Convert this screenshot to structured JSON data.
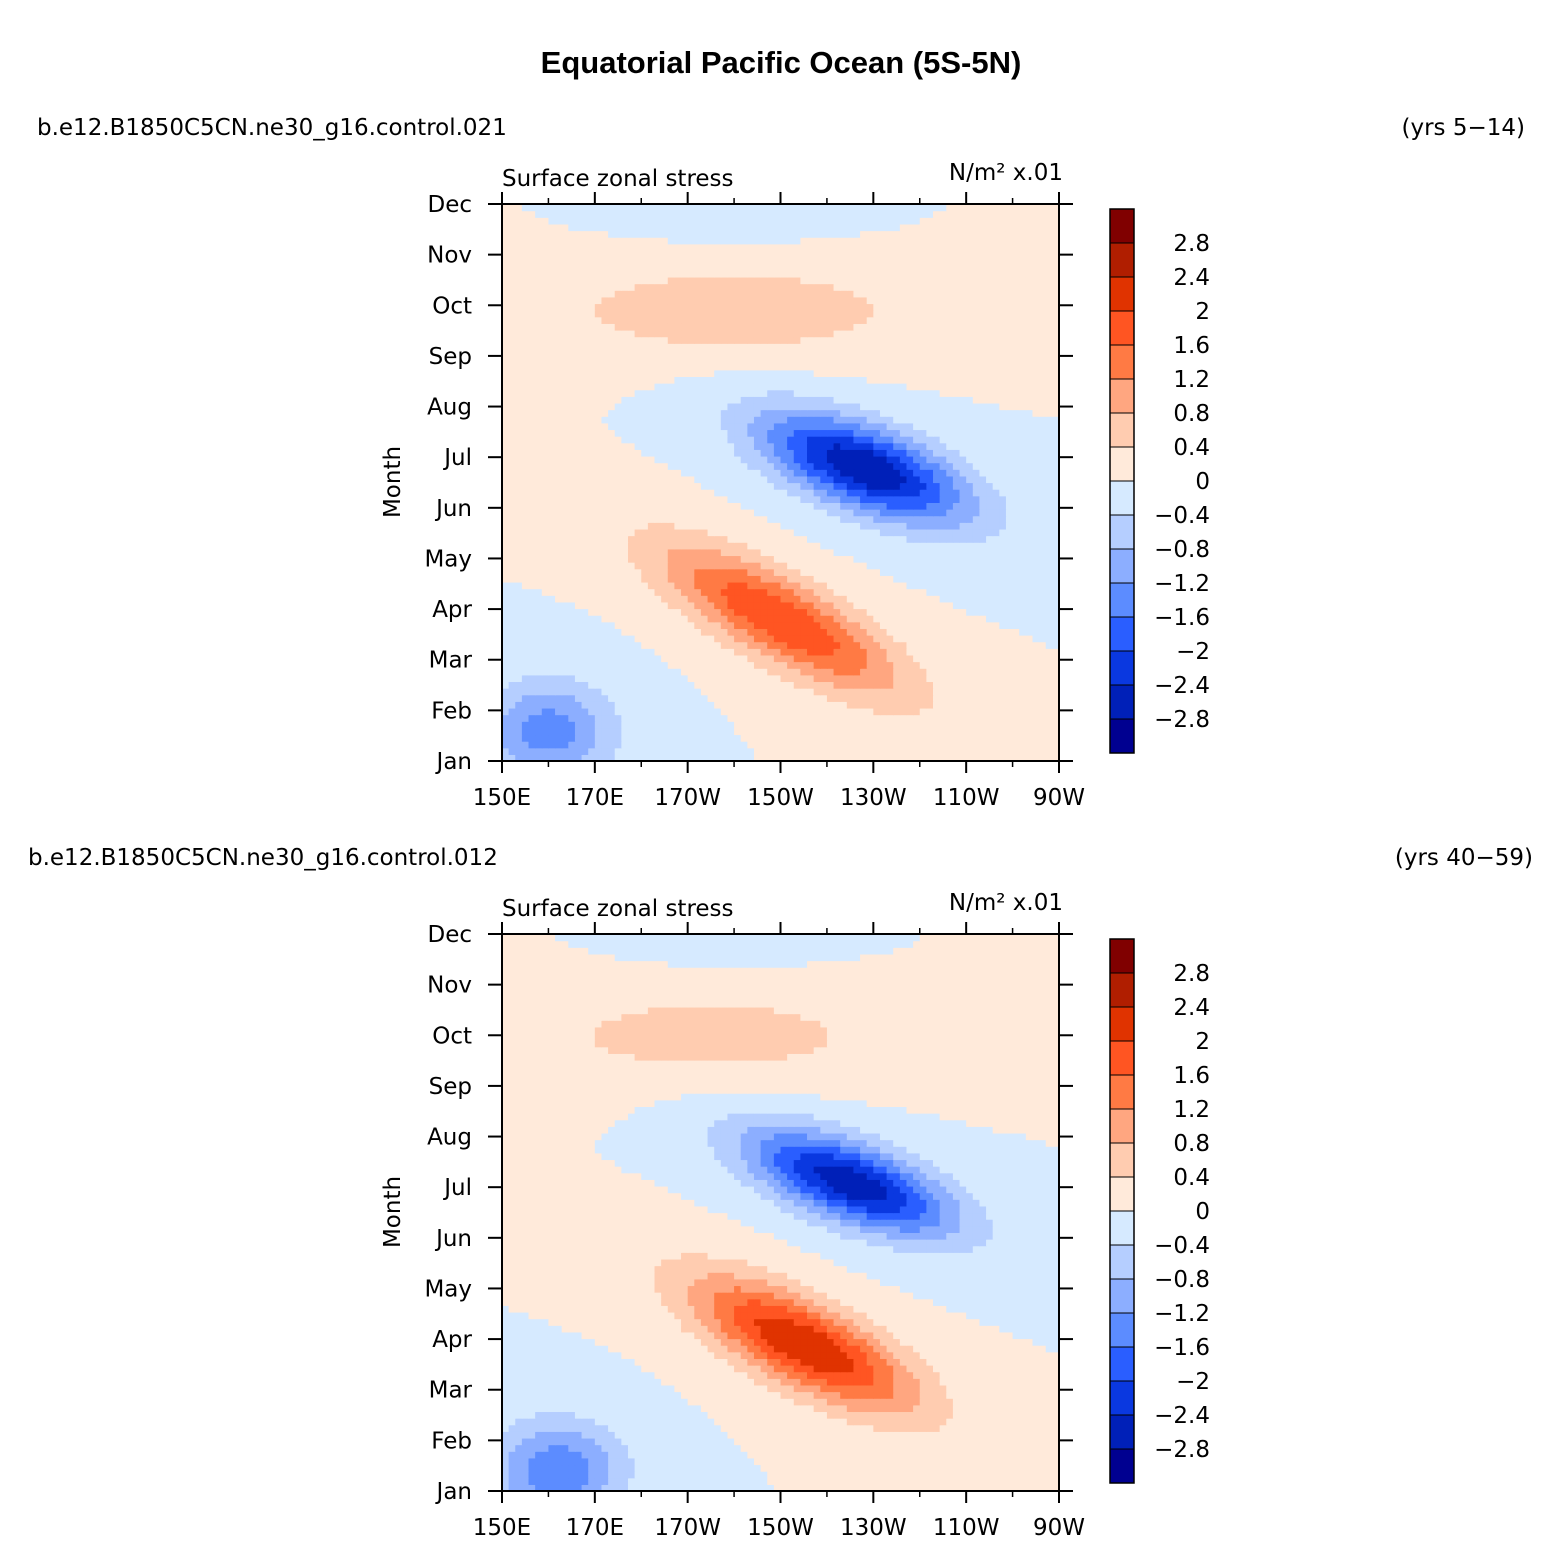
{
  "title": "Equatorial Pacific Ocean (5S-5N)",
  "colorbar": {
    "levels": [
      "2.8",
      "2.4",
      "2",
      "1.6",
      "1.2",
      "0.8",
      "0.4",
      "0",
      "−0.4",
      "−0.8",
      "−1.2",
      "−1.6",
      "−2",
      "−2.4",
      "−2.8"
    ],
    "colors": [
      "#800000",
      "#b01e00",
      "#e03300",
      "#ff5522",
      "#ff7a44",
      "#ffa680",
      "#ffccb0",
      "#ffeada",
      "#d6eaff",
      "#b5ceff",
      "#8caeff",
      "#5c8cff",
      "#2a5eff",
      "#0a38e0",
      "#0020b8",
      "#000090"
    ]
  },
  "chart_data": [
    {
      "type": "heatmap",
      "case": "b.e12.B1850C5CN.ne30_g16.control.021",
      "period": "(yrs 5−14)",
      "variable": "Surface zonal stress",
      "units": "N/m² x.01",
      "ylabel": "Month",
      "x_ticks": [
        "150E",
        "170E",
        "170W",
        "150W",
        "130W",
        "110W",
        "90W"
      ],
      "y_ticks": [
        "Jan",
        "Feb",
        "Mar",
        "Apr",
        "May",
        "Jun",
        "Jul",
        "Aug",
        "Sep",
        "Oct",
        "Nov",
        "Dec"
      ],
      "x_range_lon": [
        150,
        270
      ],
      "contour_interval": 0.4,
      "features": [
        {
          "name": "negative_spring_west",
          "lon": 160,
          "month": 1.6,
          "value": -1.4,
          "slon": 14,
          "smon": 1.0,
          "tilt": 0
        },
        {
          "name": "positive_spring",
          "lon": 210,
          "month": 3.8,
          "value": 2.0,
          "slon": 26,
          "smon": 0.9,
          "tilt": 0.045
        },
        {
          "name": "negative_summer",
          "lon": 228,
          "month": 6.8,
          "value": -2.8,
          "slon": 22,
          "smon": 0.85,
          "tilt": 0.03
        },
        {
          "name": "positive_fall",
          "lon": 200,
          "month": 9.9,
          "value": 0.7,
          "slon": 40,
          "smon": 0.9,
          "tilt": 0
        },
        {
          "name": "negative_dec",
          "lon": 200,
          "month": 11.7,
          "value": -0.3,
          "slon": 20,
          "smon": 0.4,
          "tilt": 0
        }
      ]
    },
    {
      "type": "heatmap",
      "case": "b.e12.B1850C5CN.ne30_g16.control.012",
      "period": "(yrs 40−59)",
      "variable": "Surface zonal stress",
      "units": "N/m² x.01",
      "ylabel": "Month",
      "x_ticks": [
        "150E",
        "170E",
        "170W",
        "150W",
        "130W",
        "110W",
        "90W"
      ],
      "y_ticks": [
        "Jan",
        "Feb",
        "Mar",
        "Apr",
        "May",
        "Jun",
        "Jul",
        "Aug",
        "Sep",
        "Oct",
        "Nov",
        "Dec"
      ],
      "x_range_lon": [
        150,
        270
      ],
      "contour_interval": 0.4,
      "features": [
        {
          "name": "negative_spring_west",
          "lon": 162,
          "month": 1.4,
          "value": -1.5,
          "slon": 14,
          "smon": 1.0,
          "tilt": 0
        },
        {
          "name": "positive_spring",
          "lon": 215,
          "month": 3.9,
          "value": 2.4,
          "slon": 24,
          "smon": 0.9,
          "tilt": 0.04
        },
        {
          "name": "negative_summer",
          "lon": 225,
          "month": 7.1,
          "value": -2.7,
          "slon": 22,
          "smon": 0.8,
          "tilt": 0.03
        },
        {
          "name": "positive_fall",
          "lon": 195,
          "month": 10.0,
          "value": 0.6,
          "slon": 40,
          "smon": 0.9,
          "tilt": 0
        },
        {
          "name": "negative_dec",
          "lon": 200,
          "month": 11.8,
          "value": -0.3,
          "slon": 18,
          "smon": 0.35,
          "tilt": 0
        }
      ]
    }
  ]
}
